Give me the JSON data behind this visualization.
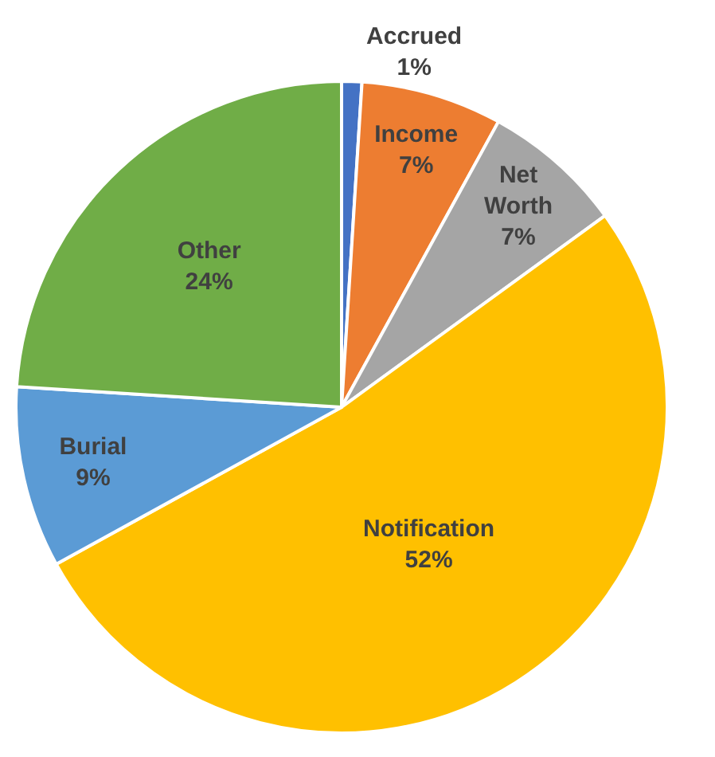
{
  "chart_data": {
    "type": "pie",
    "categories": [
      "Accrued",
      "Income",
      "Net Worth",
      "Notification",
      "Burial",
      "Other"
    ],
    "values": [
      1,
      7,
      7,
      52,
      9,
      24
    ],
    "colors": [
      "#4472c4",
      "#ed7d31",
      "#a5a5a5",
      "#ffc000",
      "#5b9bd5",
      "#70ad47"
    ],
    "value_labels": [
      "1%",
      "7%",
      "7%",
      "52%",
      "9%",
      "24%"
    ],
    "legend": false
  }
}
